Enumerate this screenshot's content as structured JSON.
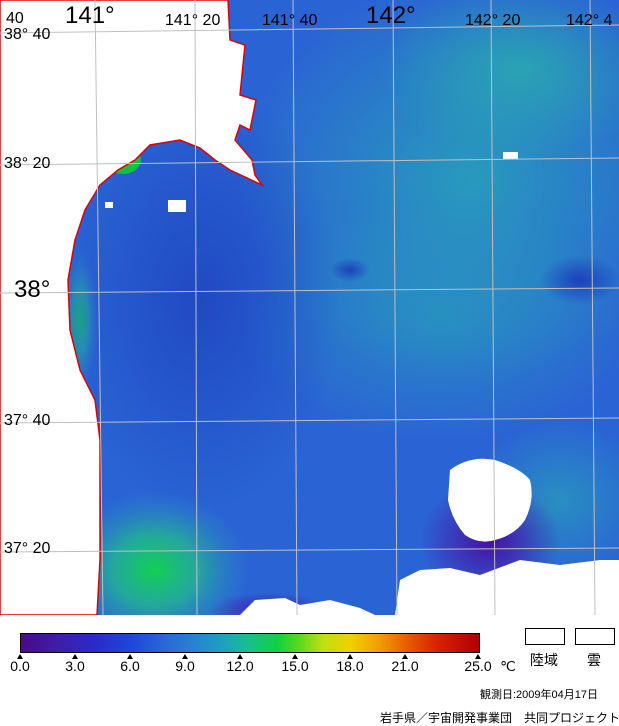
{
  "map": {
    "top_labels": [
      "40",
      "141°",
      "141° 20",
      "141° 40",
      "142°",
      "142° 20",
      "142° 4"
    ],
    "left_labels": [
      "38° 40",
      "38° 20",
      "38°",
      "37° 40",
      "37° 20"
    ],
    "coastline_color": "#e00000",
    "land_color": "#ffffff",
    "grid_color": "#c0c0c0"
  },
  "colorbar": {
    "ticks": [
      "0.0",
      "3.0",
      "6.0",
      "9.0",
      "12.0",
      "15.0",
      "18.0",
      "21.0",
      "25.0"
    ],
    "unit": "℃"
  },
  "legend": {
    "land_label": "陸域",
    "cloud_label": "雲"
  },
  "footer": {
    "observation_date": "観測日:2009年04月17日",
    "credit": "岩手県／宇宙開発事業団　共同プロジェクト"
  }
}
